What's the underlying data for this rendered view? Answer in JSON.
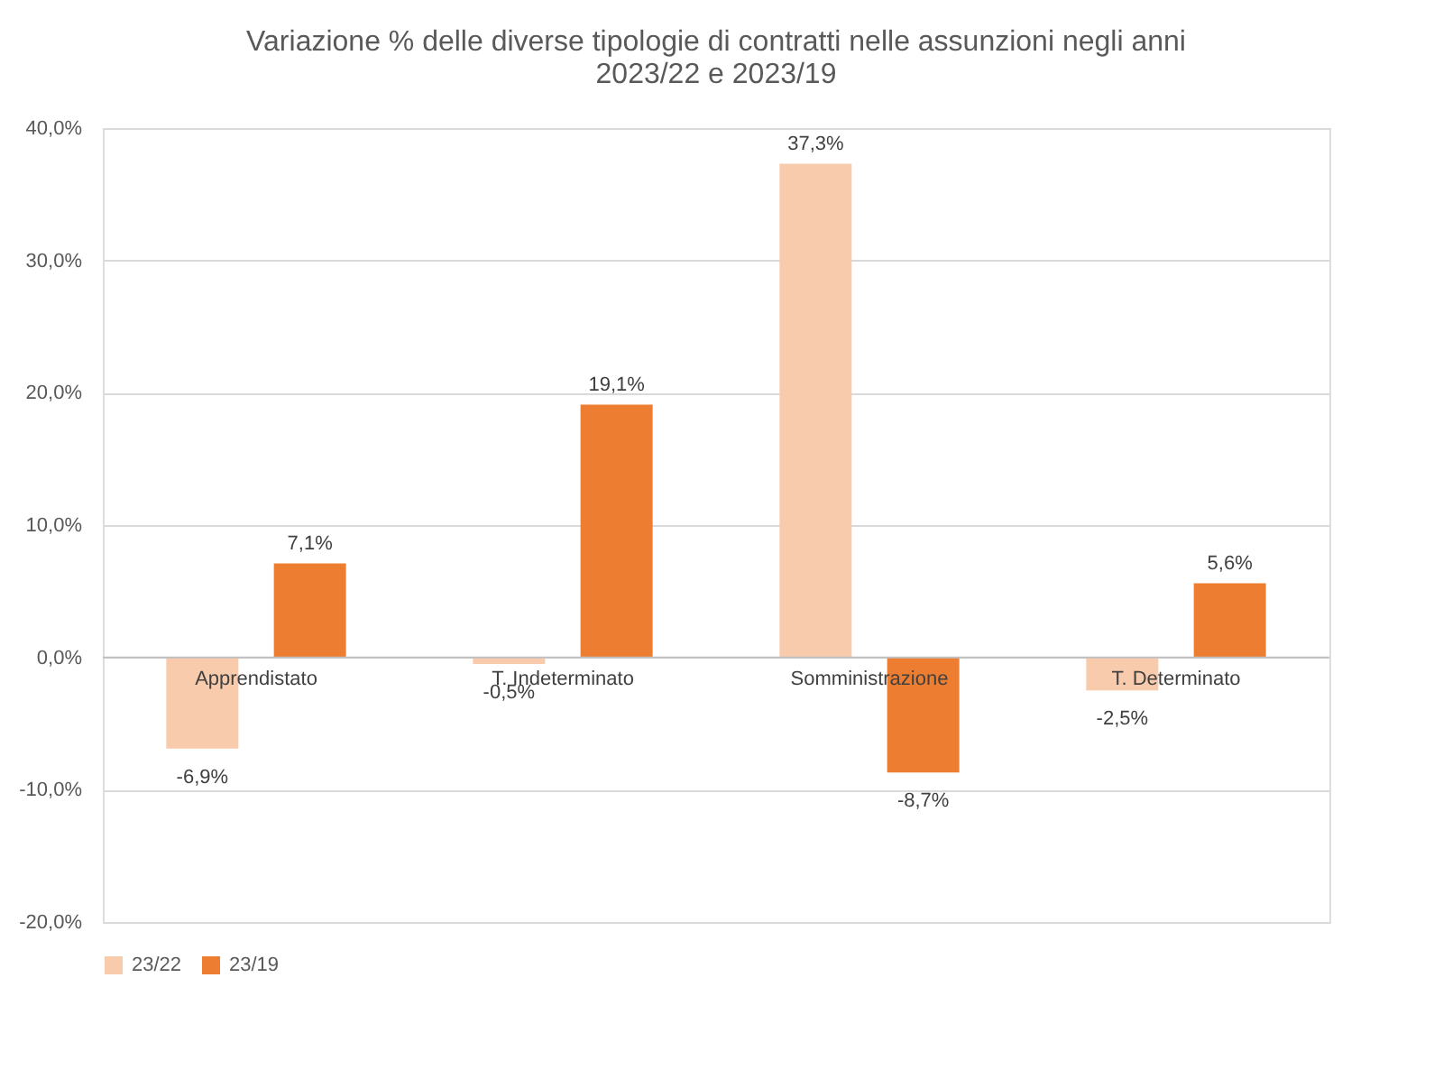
{
  "chart_data": {
    "type": "bar",
    "title": "Variazione % delle diverse tipologie di contratti nelle assunzioni negli anni 2023/22 e 2023/19",
    "categories": [
      "Apprendistato",
      "T. Indeterminato",
      "Somministrazione",
      "T. Determinato"
    ],
    "series": [
      {
        "name": "23/22",
        "color": "#f8cbad",
        "values": [
          -6.9,
          -0.5,
          37.3,
          -2.5
        ],
        "value_labels": [
          "-6,9%",
          "-0,5%",
          "37,3%",
          "-2,5%"
        ]
      },
      {
        "name": "23/19",
        "color": "#ed7d31",
        "values": [
          7.1,
          19.1,
          -8.7,
          5.6
        ],
        "value_labels": [
          "7,1%",
          "19,1%",
          "-8,7%",
          "5,6%"
        ]
      }
    ],
    "ylim": [
      -20,
      40
    ],
    "yticks": [
      {
        "value": -20,
        "label": "-20,0%"
      },
      {
        "value": -10,
        "label": "-10,0%"
      },
      {
        "value": 0,
        "label": "0,0%"
      },
      {
        "value": 10,
        "label": "10,0%"
      },
      {
        "value": 20,
        "label": "20,0%"
      },
      {
        "value": 30,
        "label": "30,0%"
      },
      {
        "value": 40,
        "label": "40,0%"
      }
    ],
    "grid": "y",
    "legend": "bottom"
  }
}
